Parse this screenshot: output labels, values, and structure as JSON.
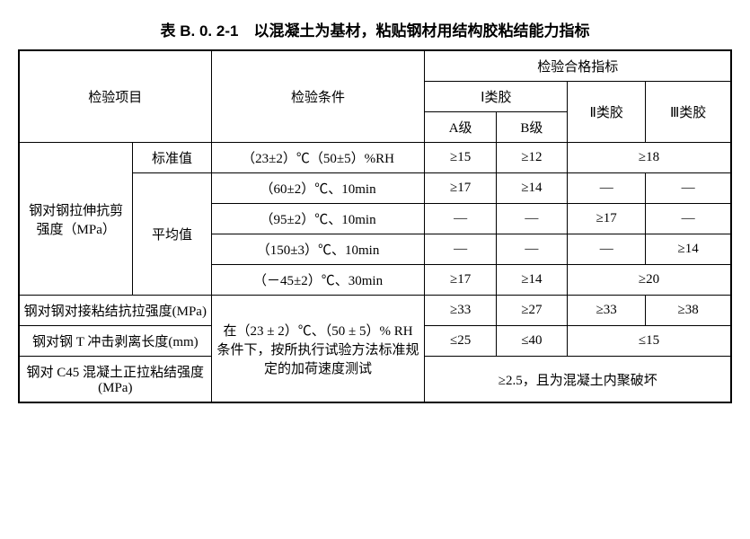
{
  "title": "表 B. 0. 2-1　以混凝土为基材，粘贴钢材用结构胶粘结能力指标",
  "headers": {
    "inspection_item": "检验项目",
    "inspection_condition": "检验条件",
    "pass_criteria": "检验合格指标",
    "type1": "Ⅰ类胶",
    "type2": "Ⅱ类胶",
    "type3": "Ⅲ类胶",
    "gradeA": "A级",
    "gradeB": "B级"
  },
  "rows": {
    "r1_item": "钢对钢拉伸抗剪强度（MPa）",
    "r1_sub1": "标准值",
    "r1_sub2": "平均值",
    "r1_cond1": "（23±2）℃（50±5）%RH",
    "r1_c1A": "≥15",
    "r1_c1B": "≥12",
    "r1_c1_23": "≥18",
    "r1_cond2": "（60±2）℃、10min",
    "r1_c2A": "≥17",
    "r1_c2B": "≥14",
    "r1_c2_2": "—",
    "r1_c2_3": "—",
    "r1_cond3": "（95±2）℃、10min",
    "r1_c3A": "—",
    "r1_c3B": "—",
    "r1_c3_2": "≥17",
    "r1_c3_3": "—",
    "r1_cond4": "（150±3）℃、10min",
    "r1_c4A": "—",
    "r1_c4B": "—",
    "r1_c4_2": "—",
    "r1_c4_3": "≥14",
    "r1_cond5": "（－45±2）℃、30min",
    "r1_c5A": "≥17",
    "r1_c5B": "≥14",
    "r1_c5_23": "≥20",
    "r2_item": "钢对钢对接粘结抗拉强度(MPa)",
    "r2_cond": "在（23 ± 2）℃、（50 ± 5）% RH 条件下，按所执行试验方法标准规定的加荷速度测试",
    "r2_A": "≥33",
    "r2_B": "≥27",
    "r2_2": "≥33",
    "r2_3": "≥38",
    "r3_item": "钢对钢 T 冲击剥离长度(mm)",
    "r3_A": "≤25",
    "r3_B": "≤40",
    "r3_23": "≤15",
    "r4_item": "钢对 C45 混凝土正拉粘结强度(MPa)",
    "r4_all": "≥2.5，且为混凝土内聚破坏"
  },
  "colwidths": {
    "c1": "16%",
    "c2": "11%",
    "c3": "30%",
    "c4": "10%",
    "c5": "10%",
    "c6": "11%",
    "c7": "12%"
  }
}
